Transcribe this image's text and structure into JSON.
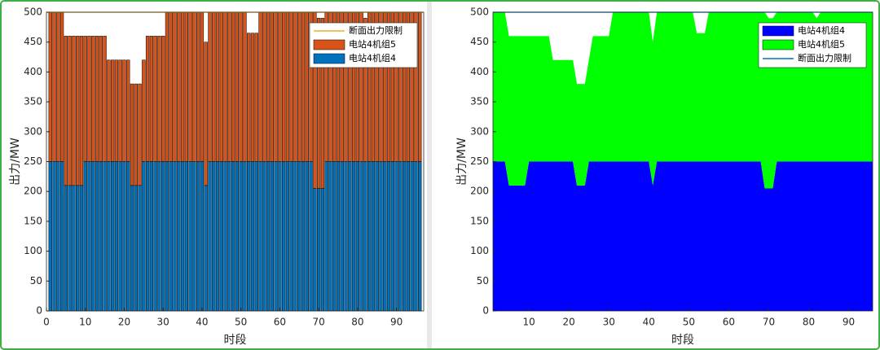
{
  "chart_data": [
    {
      "type": "bar",
      "xlabel": "时段",
      "ylabel": "出力/MW",
      "x": [
        1,
        2,
        3,
        4,
        5,
        6,
        7,
        8,
        9,
        10,
        11,
        12,
        13,
        14,
        15,
        16,
        17,
        18,
        19,
        20,
        21,
        22,
        23,
        24,
        25,
        26,
        27,
        28,
        29,
        30,
        31,
        32,
        33,
        34,
        35,
        36,
        37,
        38,
        39,
        40,
        41,
        42,
        43,
        44,
        45,
        46,
        47,
        48,
        49,
        50,
        51,
        52,
        53,
        54,
        55,
        56,
        57,
        58,
        59,
        60,
        61,
        62,
        63,
        64,
        65,
        66,
        67,
        68,
        69,
        70,
        71,
        72,
        73,
        74,
        75,
        76,
        77,
        78,
        79,
        80,
        81,
        82,
        83,
        84,
        85,
        86,
        87,
        88,
        89,
        90,
        91,
        92,
        93,
        94,
        95,
        96
      ],
      "series": [
        {
          "name": "电站4机组4",
          "color": "#0072bd",
          "values": [
            250,
            250,
            250,
            250,
            210,
            210,
            210,
            210,
            210,
            250,
            250,
            250,
            250,
            250,
            250,
            250,
            250,
            250,
            250,
            250,
            250,
            210,
            210,
            210,
            250,
            250,
            250,
            250,
            250,
            250,
            250,
            250,
            250,
            250,
            250,
            250,
            250,
            250,
            250,
            250,
            210,
            250,
            250,
            250,
            250,
            250,
            250,
            250,
            250,
            250,
            250,
            250,
            250,
            250,
            250,
            250,
            250,
            250,
            250,
            250,
            250,
            250,
            250,
            250,
            250,
            250,
            250,
            250,
            205,
            205,
            205,
            250,
            250,
            250,
            250,
            250,
            250,
            250,
            250,
            250,
            250,
            250,
            250,
            250,
            250,
            250,
            250,
            250,
            250,
            250,
            250,
            250,
            250,
            250,
            250,
            250
          ]
        },
        {
          "name": "电站4机组5",
          "color": "#d95319",
          "values": [
            250,
            250,
            250,
            250,
            250,
            250,
            250,
            250,
            250,
            210,
            210,
            210,
            210,
            210,
            210,
            170,
            170,
            170,
            170,
            170,
            170,
            170,
            170,
            170,
            170,
            210,
            210,
            210,
            210,
            210,
            250,
            250,
            250,
            250,
            250,
            250,
            250,
            250,
            250,
            250,
            240,
            250,
            250,
            250,
            250,
            250,
            250,
            250,
            250,
            250,
            250,
            215,
            215,
            215,
            250,
            250,
            250,
            250,
            250,
            250,
            250,
            250,
            250,
            250,
            250,
            250,
            250,
            250,
            295,
            285,
            285,
            250,
            250,
            250,
            250,
            250,
            250,
            250,
            250,
            250,
            250,
            240,
            250,
            250,
            250,
            250,
            250,
            250,
            250,
            250,
            250,
            250,
            250,
            250,
            250,
            250
          ]
        }
      ],
      "limit": {
        "name": "断面出力限制",
        "value": 500,
        "color": "#edb120"
      },
      "xlim": [
        0,
        97
      ],
      "xticks": [
        0,
        10,
        20,
        30,
        40,
        50,
        60,
        70,
        80,
        90
      ],
      "ylim": [
        0,
        500
      ],
      "yticks": [
        0,
        50,
        100,
        150,
        200,
        250,
        300,
        350,
        400,
        450,
        500
      ]
    },
    {
      "type": "area",
      "xlabel": "时段",
      "ylabel": "出力/MW",
      "x": [
        1,
        2,
        3,
        4,
        5,
        6,
        7,
        8,
        9,
        10,
        11,
        12,
        13,
        14,
        15,
        16,
        17,
        18,
        19,
        20,
        21,
        22,
        23,
        24,
        25,
        26,
        27,
        28,
        29,
        30,
        31,
        32,
        33,
        34,
        35,
        36,
        37,
        38,
        39,
        40,
        41,
        42,
        43,
        44,
        45,
        46,
        47,
        48,
        49,
        50,
        51,
        52,
        53,
        54,
        55,
        56,
        57,
        58,
        59,
        60,
        61,
        62,
        63,
        64,
        65,
        66,
        67,
        68,
        69,
        70,
        71,
        72,
        73,
        74,
        75,
        76,
        77,
        78,
        79,
        80,
        81,
        82,
        83,
        84,
        85,
        86,
        87,
        88,
        89,
        90,
        91,
        92,
        93,
        94,
        95,
        96
      ],
      "series": [
        {
          "name": "电站4机组4",
          "color": "#0000ff",
          "values": [
            250,
            250,
            250,
            250,
            210,
            210,
            210,
            210,
            210,
            250,
            250,
            250,
            250,
            250,
            250,
            250,
            250,
            250,
            250,
            250,
            250,
            210,
            210,
            210,
            250,
            250,
            250,
            250,
            250,
            250,
            250,
            250,
            250,
            250,
            250,
            250,
            250,
            250,
            250,
            250,
            210,
            250,
            250,
            250,
            250,
            250,
            250,
            250,
            250,
            250,
            250,
            250,
            250,
            250,
            250,
            250,
            250,
            250,
            250,
            250,
            250,
            250,
            250,
            250,
            250,
            250,
            250,
            250,
            205,
            205,
            205,
            250,
            250,
            250,
            250,
            250,
            250,
            250,
            250,
            250,
            250,
            250,
            250,
            250,
            250,
            250,
            250,
            250,
            250,
            250,
            250,
            250,
            250,
            250,
            250,
            250
          ]
        },
        {
          "name": "电站4机组5",
          "color": "#00ff00",
          "values": [
            250,
            250,
            250,
            250,
            250,
            250,
            250,
            250,
            250,
            210,
            210,
            210,
            210,
            210,
            210,
            170,
            170,
            170,
            170,
            170,
            170,
            170,
            170,
            170,
            170,
            210,
            210,
            210,
            210,
            210,
            250,
            250,
            250,
            250,
            250,
            250,
            250,
            250,
            250,
            250,
            240,
            250,
            250,
            250,
            250,
            250,
            250,
            250,
            250,
            250,
            250,
            215,
            215,
            215,
            250,
            250,
            250,
            250,
            250,
            250,
            250,
            250,
            250,
            250,
            250,
            250,
            250,
            250,
            295,
            285,
            285,
            250,
            250,
            250,
            250,
            250,
            250,
            250,
            250,
            250,
            250,
            240,
            250,
            250,
            250,
            250,
            250,
            250,
            250,
            250,
            250,
            250,
            250,
            250,
            250,
            250
          ]
        }
      ],
      "limit": {
        "name": "断面出力限制",
        "value": 500,
        "color": "#0072bd"
      },
      "xlim": [
        1,
        96
      ],
      "xticks": [
        10,
        20,
        30,
        40,
        50,
        60,
        70,
        80,
        90
      ],
      "ylim": [
        0,
        500
      ],
      "yticks": [
        0,
        50,
        100,
        150,
        200,
        250,
        300,
        350,
        400,
        450,
        500
      ]
    }
  ]
}
